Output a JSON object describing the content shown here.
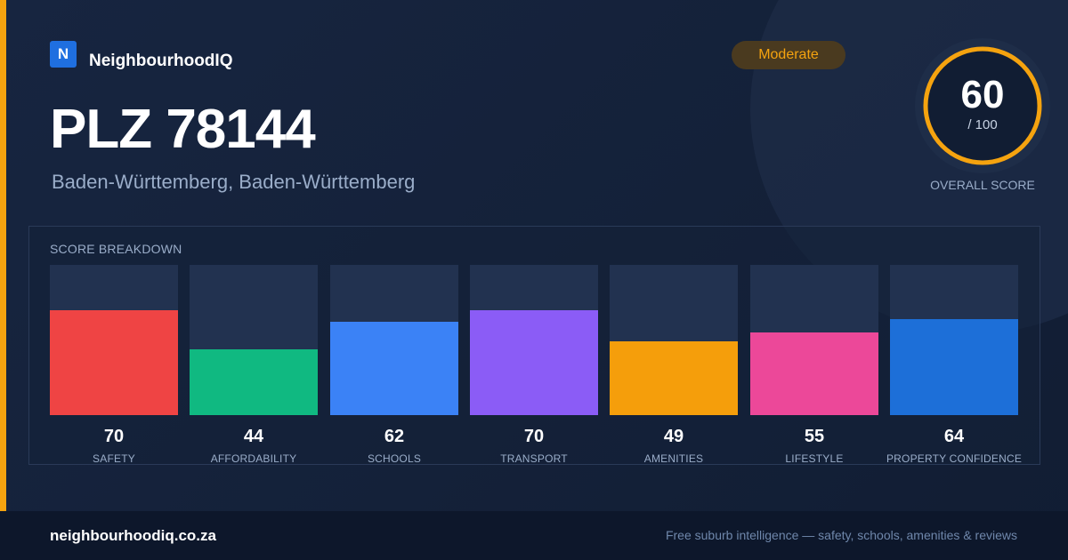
{
  "brand": {
    "logo_letter": "N",
    "name": "NeighbourhoodIQ"
  },
  "location": {
    "title": "PLZ 78144",
    "subtitle": "Baden-Württemberg, Baden-Württemberg"
  },
  "badge": {
    "label": "Moderate",
    "color": "#f5a30f"
  },
  "overall": {
    "value": "60",
    "max_label": "/ 100",
    "caption": "OVERALL SCORE",
    "ring_color": "#f5a30f"
  },
  "breakdown": {
    "heading": "SCORE BREAKDOWN",
    "max": 100,
    "items": [
      {
        "label": "SAFETY",
        "value": "70",
        "color": "#ef4444"
      },
      {
        "label": "AFFORDABILITY",
        "value": "44",
        "color": "#10b981"
      },
      {
        "label": "SCHOOLS",
        "value": "62",
        "color": "#3b82f6"
      },
      {
        "label": "TRANSPORT",
        "value": "70",
        "color": "#8b5cf6"
      },
      {
        "label": "AMENITIES",
        "value": "49",
        "color": "#f59e0b"
      },
      {
        "label": "LIFESTYLE",
        "value": "55",
        "color": "#ec4899"
      },
      {
        "label": "PROPERTY CONFIDENCE",
        "value": "64",
        "color": "#1d6fd8"
      }
    ]
  },
  "footer": {
    "domain": "neighbourhoodiq.co.za",
    "tagline": "Free suburb intelligence — safety, schools, amenities & reviews"
  }
}
